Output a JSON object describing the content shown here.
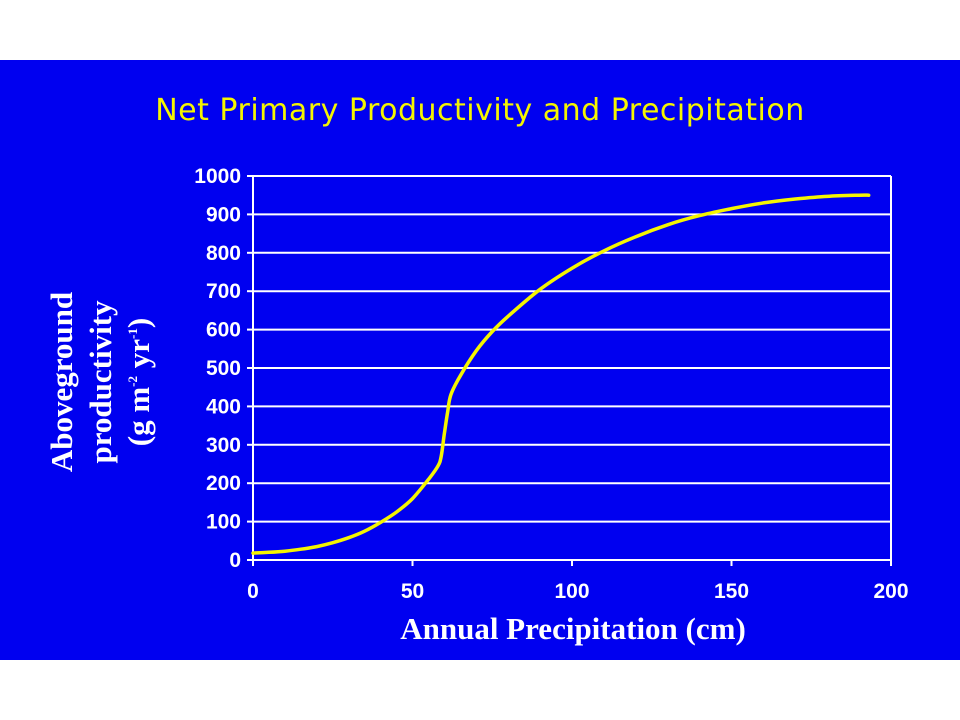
{
  "slide": {
    "background": "#0000f0",
    "title_color": "#f5f500",
    "curve_color": "#f5f500"
  },
  "chart_data": {
    "type": "line",
    "title": "Net Primary Productivity and Precipitation",
    "xlabel": "Annual Precipitation (cm)",
    "ylabel_lines": [
      "Aboveground",
      "productivity"
    ],
    "ylabel_units": {
      "open": "(g m",
      "sup1": "-2",
      "mid": " yr",
      "sup2": "-1",
      "close": ")"
    },
    "xlim": [
      0,
      200
    ],
    "ylim": [
      0,
      1000
    ],
    "x_ticks": [
      0,
      50,
      100,
      150,
      200
    ],
    "x_tick_labels": [
      "0",
      "50",
      "100",
      "150",
      "200"
    ],
    "y_ticks": [
      0,
      100,
      200,
      300,
      400,
      500,
      600,
      700,
      800,
      900,
      1000
    ],
    "y_tick_labels": [
      "0",
      "100",
      "200",
      "300",
      "400",
      "500",
      "600",
      "700",
      "800",
      "900",
      "1000"
    ],
    "grid": true,
    "series": [
      {
        "x": [
          0,
          5,
          10,
          15,
          20,
          25,
          30,
          35,
          40,
          45,
          50,
          55,
          58,
          59,
          60,
          61,
          62,
          65,
          70,
          75,
          80,
          90,
          100,
          110,
          120,
          130,
          140,
          150,
          160,
          170,
          180,
          190,
          193
        ],
        "y": [
          18,
          20,
          23,
          28,
          35,
          45,
          58,
          75,
          98,
          125,
          160,
          210,
          245,
          270,
          330,
          385,
          430,
          480,
          545,
          595,
          635,
          705,
          760,
          805,
          842,
          873,
          897,
          915,
          930,
          940,
          947,
          950,
          950
        ]
      }
    ]
  }
}
